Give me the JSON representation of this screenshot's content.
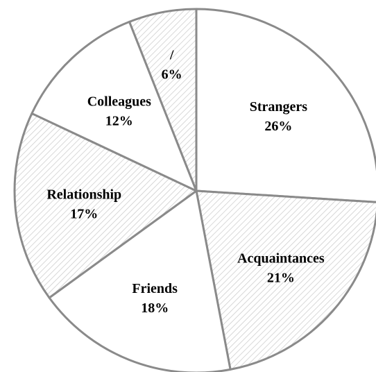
{
  "chart_data": {
    "type": "pie",
    "title": "",
    "start_angle_deg": 0,
    "direction": "clockwise",
    "slices": [
      {
        "label": "Strangers",
        "percent_text": "26%",
        "value": 26,
        "pattern": "plain"
      },
      {
        "label": "Acquaintances",
        "percent_text": "21%",
        "value": 21,
        "pattern": "hatch"
      },
      {
        "label": "Friends",
        "percent_text": "18%",
        "value": 18,
        "pattern": "plain"
      },
      {
        "label": "Relationship",
        "percent_text": "17%",
        "value": 17,
        "pattern": "hatch"
      },
      {
        "label": "Colleagues",
        "percent_text": "12%",
        "value": 12,
        "pattern": "plain"
      },
      {
        "label": "/",
        "percent_text": "6%",
        "value": 6,
        "pattern": "hatch"
      }
    ]
  },
  "colors": {
    "edge": "#8a8a8a",
    "hatch_line": "#c8c8c8",
    "fill": "#ffffff",
    "text": "#000000"
  }
}
